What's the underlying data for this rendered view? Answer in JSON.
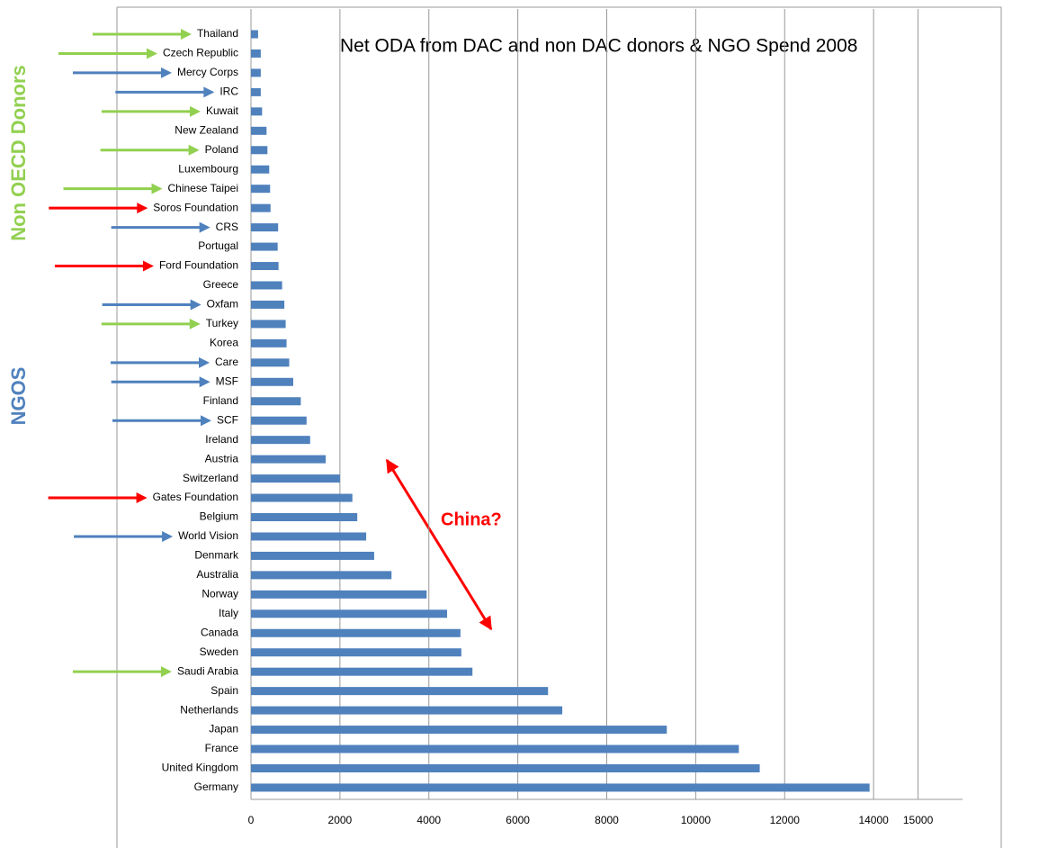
{
  "chart_data": {
    "type": "barh",
    "title": "Net ODA from DAC and non DAC donors & NGO Spend 2008",
    "annotations": [
      "Non OECD Donors",
      "NGOS",
      "China?"
    ],
    "categories": [
      "Thailand",
      "Czech Republic",
      "Mercy Corps",
      "IRC",
      "Kuwait",
      "New Zealand",
      "Poland",
      "Luxembourg",
      "Chinese Taipei",
      "Soros Foundation",
      "CRS",
      "Portugal",
      "Ford Foundation",
      "Greece",
      "Oxfam",
      "Turkey",
      "Korea",
      "Care",
      "MSF",
      "Finland",
      "SCF",
      "Ireland",
      "Austria",
      "Switzerland",
      "Gates Foundation",
      "Belgium",
      "World Vision",
      "Denmark",
      "Australia",
      "Norway",
      "Italy",
      "Canada",
      "Sweden",
      "Saudi Arabia",
      "Spain",
      "Netherlands",
      "Japan",
      "France",
      "United Kingdom",
      "Germany"
    ],
    "values": [
      160,
      220,
      220,
      220,
      250,
      350,
      370,
      410,
      430,
      440,
      610,
      600,
      620,
      700,
      750,
      780,
      800,
      860,
      950,
      1120,
      1250,
      1330,
      1680,
      2000,
      2280,
      2390,
      2590,
      2770,
      3160,
      3950,
      4410,
      4710,
      4730,
      4980,
      6680,
      7000,
      9350,
      10970,
      11440,
      13910
    ],
    "color": "#4f81bd",
    "arrow_colors": [
      "#92d050",
      "#92d050",
      "#4f81bd",
      "#4f81bd",
      "#92d050",
      null,
      "#92d050",
      null,
      "#92d050",
      "#ff0000",
      "#4f81bd",
      null,
      "#ff0000",
      null,
      "#4f81bd",
      "#92d050",
      null,
      "#4f81bd",
      "#4f81bd",
      null,
      "#4f81bd",
      null,
      null,
      null,
      "#ff0000",
      null,
      "#4f81bd",
      null,
      null,
      null,
      null,
      null,
      null,
      "#92d050",
      null,
      null,
      null,
      null,
      null,
      null
    ],
    "xlim": [
      0,
      16000
    ],
    "xticks": [
      0,
      2000,
      4000,
      6000,
      8000,
      10000,
      12000,
      14000,
      15000
    ],
    "grid": true
  }
}
